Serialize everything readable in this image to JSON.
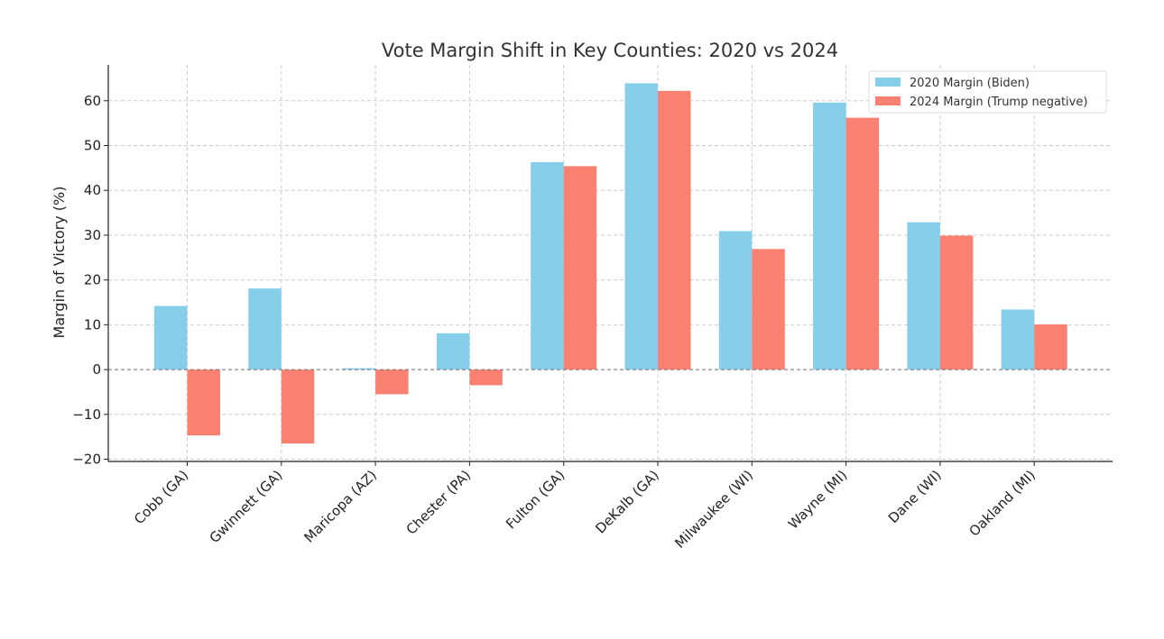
{
  "chart_data": {
    "type": "bar",
    "title": "Vote Margin Shift in Key Counties: 2020 vs 2024",
    "xlabel": "",
    "ylabel": "Margin of Victory (%)",
    "categories": [
      "Cobb (GA)",
      "Gwinnett (GA)",
      "Maricopa (AZ)",
      "Chester (PA)",
      "Fulton (GA)",
      "DeKalb (GA)",
      "Milwaukee (WI)",
      "Wayne (MI)",
      "Dane (WI)",
      "Oakland (MI)"
    ],
    "series": [
      {
        "name": "2020 Margin (Biden)",
        "color": "#87CEEB",
        "values": [
          14.2,
          18.1,
          0.3,
          8.1,
          46.3,
          63.9,
          30.9,
          59.6,
          32.9,
          13.4
        ]
      },
      {
        "name": "2024 Margin (Trump negative)",
        "color": "#FA8072",
        "values": [
          -14.7,
          -16.5,
          -5.5,
          -3.5,
          45.4,
          62.2,
          26.9,
          56.2,
          29.9,
          10.1
        ]
      }
    ],
    "ylim": [
      -20.5,
      68
    ],
    "yticks": [
      -20,
      -10,
      0,
      10,
      20,
      30,
      40,
      50,
      60
    ],
    "ytick_labels": [
      "−20",
      "−10",
      "0",
      "10",
      "20",
      "30",
      "40",
      "50",
      "60"
    ],
    "grid": true,
    "legend_position": "top-right",
    "zero_line": true
  }
}
